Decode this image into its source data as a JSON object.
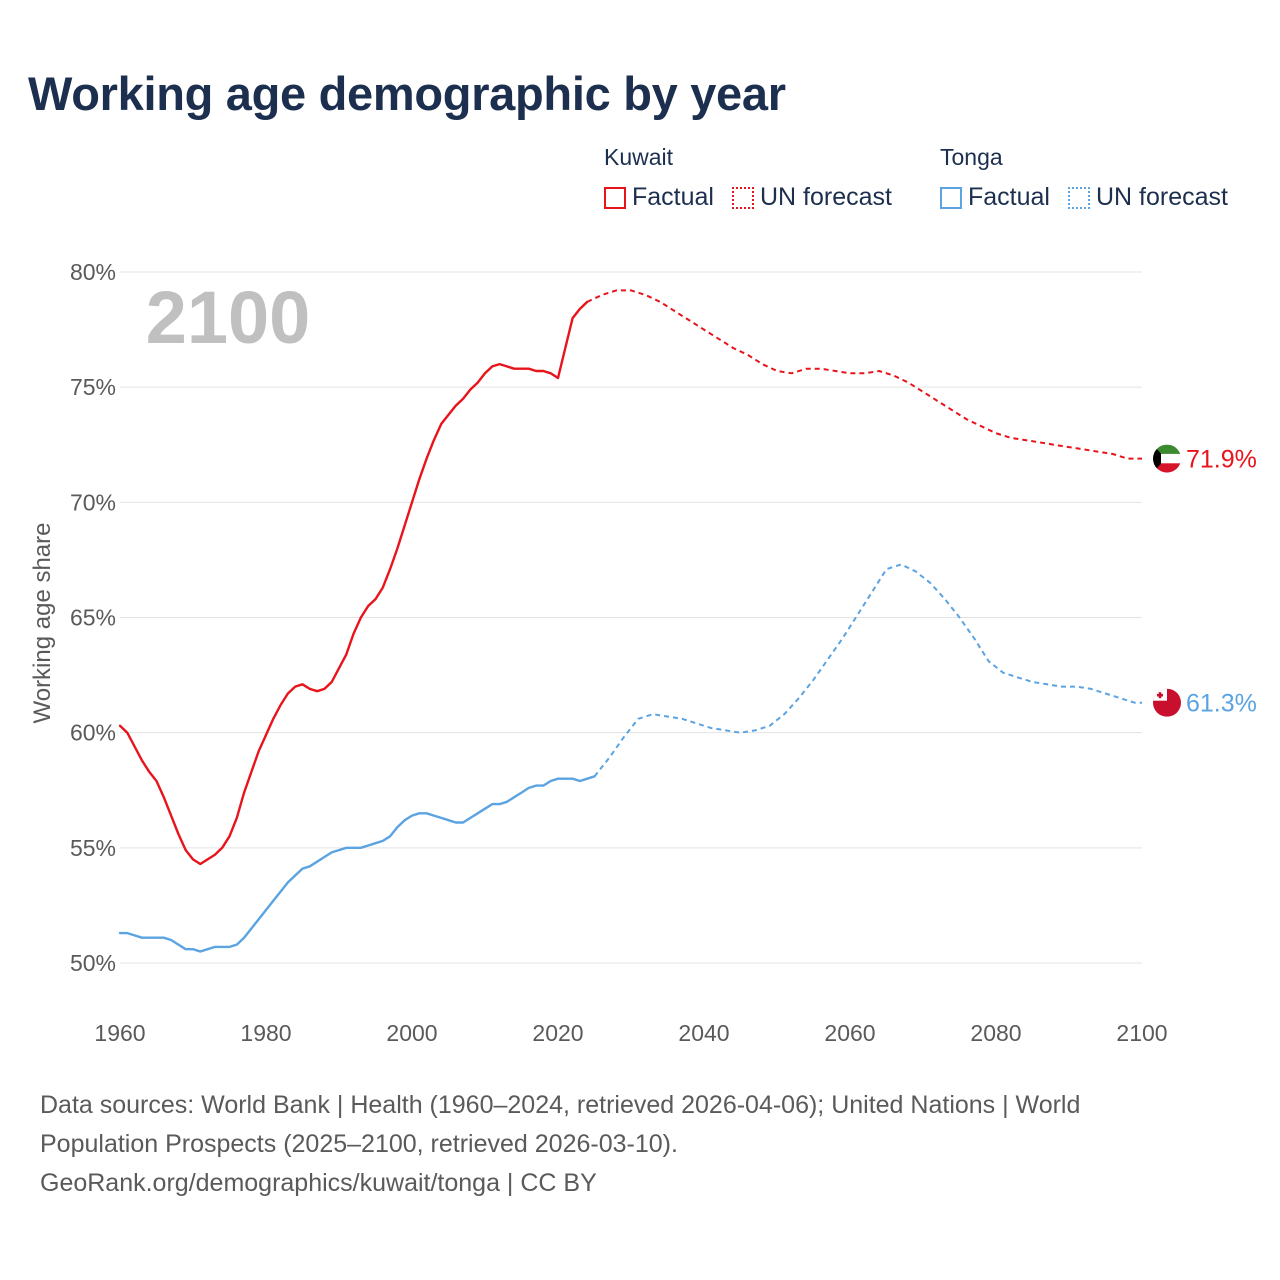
{
  "title": "Working age demographic by year",
  "legend": {
    "groups": [
      {
        "name": "Kuwait",
        "factual_label": "Factual",
        "forecast_label": "UN forecast",
        "color": "#e8141b"
      },
      {
        "name": "Tonga",
        "factual_label": "Factual",
        "forecast_label": "UN forecast",
        "color": "#5ba3e1"
      }
    ]
  },
  "year_overlay": "2100",
  "chart_data": {
    "type": "line",
    "title": "Working age demographic by year",
    "xlabel": "",
    "ylabel": "Working age share",
    "xlim": [
      1960,
      2100
    ],
    "ylim": [
      50,
      80
    ],
    "x_ticks": [
      1960,
      1980,
      2000,
      2020,
      2040,
      2060,
      2080,
      2100
    ],
    "y_ticks": [
      50,
      55,
      60,
      65,
      70,
      75,
      80
    ],
    "y_tick_format": "%",
    "grid": true,
    "series": [
      {
        "name": "Kuwait",
        "country": "Kuwait",
        "color": "#e8141b",
        "end_label": "71.9%",
        "end_flag": "kuwait-flag",
        "factual": {
          "x": [
            1960,
            1961,
            1962,
            1963,
            1964,
            1965,
            1966,
            1967,
            1968,
            1969,
            1970,
            1971,
            1972,
            1973,
            1974,
            1975,
            1976,
            1977,
            1978,
            1979,
            1980,
            1981,
            1982,
            1983,
            1984,
            1985,
            1986,
            1987,
            1988,
            1989,
            1990,
            1991,
            1992,
            1993,
            1994,
            1995,
            1996,
            1997,
            1998,
            1999,
            2000,
            2001,
            2002,
            2003,
            2004,
            2005,
            2006,
            2007,
            2008,
            2009,
            2010,
            2011,
            2012,
            2013,
            2014,
            2015,
            2016,
            2017,
            2018,
            2019,
            2020,
            2021,
            2022,
            2023,
            2024
          ],
          "y": [
            60.3,
            60.0,
            59.4,
            58.8,
            58.3,
            57.9,
            57.2,
            56.4,
            55.6,
            54.9,
            54.5,
            54.3,
            54.5,
            54.7,
            55.0,
            55.5,
            56.3,
            57.4,
            58.3,
            59.2,
            59.9,
            60.6,
            61.2,
            61.7,
            62.0,
            62.1,
            61.9,
            61.8,
            61.9,
            62.2,
            62.8,
            63.4,
            64.3,
            65.0,
            65.5,
            65.8,
            66.3,
            67.1,
            68.0,
            69.0,
            70.0,
            71.0,
            71.9,
            72.7,
            73.4,
            73.8,
            74.2,
            74.5,
            74.9,
            75.2,
            75.6,
            75.9,
            76.0,
            75.9,
            75.8,
            75.8,
            75.8,
            75.7,
            75.7,
            75.6,
            75.4,
            76.7,
            78.0,
            78.4,
            78.7
          ]
        },
        "forecast": {
          "x": [
            2024,
            2026,
            2028,
            2030,
            2032,
            2034,
            2036,
            2038,
            2040,
            2042,
            2044,
            2046,
            2048,
            2050,
            2052,
            2054,
            2056,
            2058,
            2060,
            2062,
            2064,
            2066,
            2068,
            2070,
            2072,
            2074,
            2076,
            2078,
            2080,
            2082,
            2084,
            2086,
            2088,
            2090,
            2092,
            2094,
            2096,
            2098,
            2100
          ],
          "y": [
            78.7,
            79.0,
            79.2,
            79.2,
            79.0,
            78.7,
            78.3,
            77.9,
            77.5,
            77.1,
            76.7,
            76.4,
            76.0,
            75.7,
            75.6,
            75.8,
            75.8,
            75.7,
            75.6,
            75.6,
            75.7,
            75.5,
            75.2,
            74.8,
            74.4,
            74.0,
            73.6,
            73.3,
            73.0,
            72.8,
            72.7,
            72.6,
            72.5,
            72.4,
            72.3,
            72.2,
            72.1,
            71.9,
            71.9
          ]
        }
      },
      {
        "name": "Tonga",
        "country": "Tonga",
        "color": "#5ba3e1",
        "end_label": "61.3%",
        "end_flag": "tonga-flag",
        "factual": {
          "x": [
            1960,
            1961,
            1962,
            1963,
            1964,
            1965,
            1966,
            1967,
            1968,
            1969,
            1970,
            1971,
            1972,
            1973,
            1974,
            1975,
            1976,
            1977,
            1978,
            1979,
            1980,
            1981,
            1982,
            1983,
            1984,
            1985,
            1986,
            1987,
            1988,
            1989,
            1990,
            1991,
            1992,
            1993,
            1994,
            1995,
            1996,
            1997,
            1998,
            1999,
            2000,
            2001,
            2002,
            2003,
            2004,
            2005,
            2006,
            2007,
            2008,
            2009,
            2010,
            2011,
            2012,
            2013,
            2014,
            2015,
            2016,
            2017,
            2018,
            2019,
            2020,
            2021,
            2022,
            2023,
            2024,
            2025
          ],
          "y": [
            51.3,
            51.3,
            51.2,
            51.1,
            51.1,
            51.1,
            51.1,
            51.0,
            50.8,
            50.6,
            50.6,
            50.5,
            50.6,
            50.7,
            50.7,
            50.7,
            50.8,
            51.1,
            51.5,
            51.9,
            52.3,
            52.7,
            53.1,
            53.5,
            53.8,
            54.1,
            54.2,
            54.4,
            54.6,
            54.8,
            54.9,
            55.0,
            55.0,
            55.0,
            55.1,
            55.2,
            55.3,
            55.5,
            55.9,
            56.2,
            56.4,
            56.5,
            56.5,
            56.4,
            56.3,
            56.2,
            56.1,
            56.1,
            56.3,
            56.5,
            56.7,
            56.9,
            56.9,
            57.0,
            57.2,
            57.4,
            57.6,
            57.7,
            57.7,
            57.9,
            58.0,
            58.0,
            58.0,
            57.9,
            58.0,
            58.1
          ]
        },
        "forecast": {
          "x": [
            2025,
            2027,
            2029,
            2031,
            2033,
            2035,
            2037,
            2039,
            2041,
            2043,
            2045,
            2047,
            2049,
            2051,
            2053,
            2055,
            2057,
            2059,
            2061,
            2063,
            2065,
            2067,
            2069,
            2071,
            2073,
            2075,
            2077,
            2079,
            2081,
            2083,
            2085,
            2087,
            2089,
            2091,
            2093,
            2095,
            2097,
            2099,
            2100
          ],
          "y": [
            58.1,
            58.9,
            59.8,
            60.6,
            60.8,
            60.7,
            60.6,
            60.4,
            60.2,
            60.1,
            60.0,
            60.1,
            60.3,
            60.8,
            61.5,
            62.3,
            63.2,
            64.1,
            65.1,
            66.1,
            67.1,
            67.3,
            67.0,
            66.5,
            65.8,
            65.0,
            64.1,
            63.1,
            62.6,
            62.4,
            62.2,
            62.1,
            62.0,
            62.0,
            61.9,
            61.7,
            61.5,
            61.3,
            61.3
          ]
        }
      }
    ]
  },
  "footer": {
    "line1": "Data sources: World Bank | Health (1960–2024, retrieved 2026-04-06); United Nations | World",
    "line2": "Population Prospects (2025–2100, retrieved 2026-03-10).",
    "line3": "GeoRank.org/demographics/kuwait/tonga | CC BY"
  }
}
